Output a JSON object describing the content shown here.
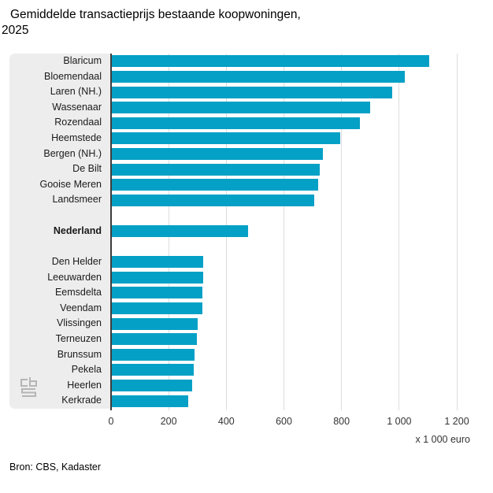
{
  "header": {
    "title_line1": "Gemiddelde transactieprijs bestaande koopwoningen,",
    "title_line2": "2025"
  },
  "footer": {
    "source": "Bron: CBS, Kadaster"
  },
  "chart_data": {
    "type": "bar",
    "orientation": "horizontal",
    "title": "Gemiddelde transactieprijs bestaande koopwoningen, 2025",
    "xlabel": "x 1 000 euro",
    "ylabel": "",
    "xlim": [
      0,
      1200
    ],
    "grid": true,
    "xticks": [
      0,
      200,
      400,
      600,
      800,
      1000,
      1200
    ],
    "xtick_labels": [
      "0",
      "200",
      "400",
      "600",
      "800",
      "1 000",
      "1 200"
    ],
    "unit_label": "x 1 000 euro",
    "groups": [
      {
        "name": "hoogste-gemeenten",
        "bold": false,
        "items": [
          {
            "label": "Blaricum",
            "value": 1105
          },
          {
            "label": "Bloemendaal",
            "value": 1020
          },
          {
            "label": "Laren (NH.)",
            "value": 975
          },
          {
            "label": "Wassenaar",
            "value": 900
          },
          {
            "label": "Rozendaal",
            "value": 865
          },
          {
            "label": "Heemstede",
            "value": 795
          },
          {
            "label": "Bergen (NH.)",
            "value": 735
          },
          {
            "label": "De Bilt",
            "value": 725
          },
          {
            "label": "Gooise Meren",
            "value": 720
          },
          {
            "label": "Landsmeer",
            "value": 705
          }
        ]
      },
      {
        "name": "nederland",
        "bold": true,
        "items": [
          {
            "label": "Nederland",
            "value": 475
          }
        ]
      },
      {
        "name": "laagste-gemeenten",
        "bold": false,
        "items": [
          {
            "label": "Den Helder",
            "value": 320
          },
          {
            "label": "Leeuwarden",
            "value": 320
          },
          {
            "label": "Eemsdelta",
            "value": 318
          },
          {
            "label": "Veendam",
            "value": 316
          },
          {
            "label": "Vlissingen",
            "value": 300
          },
          {
            "label": "Terneuzen",
            "value": 298
          },
          {
            "label": "Brunssum",
            "value": 290
          },
          {
            "label": "Pekela",
            "value": 288
          },
          {
            "label": "Heerlen",
            "value": 282
          },
          {
            "label": "Kerkrade",
            "value": 268
          }
        ]
      }
    ],
    "colors": {
      "bar": "#05A0C6",
      "panel": "#EDEDED",
      "axis": "#3C3C3C",
      "gridline": "#DDDDDD",
      "logo": "#B5B5B5"
    }
  }
}
